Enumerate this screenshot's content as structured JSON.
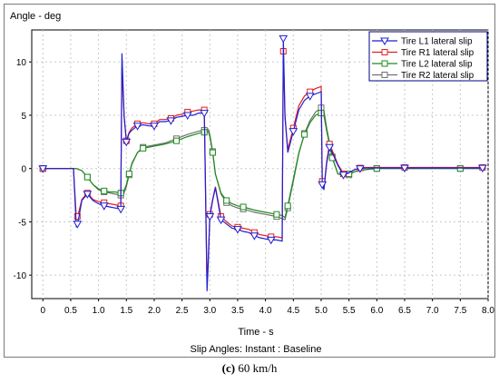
{
  "chart_data": {
    "type": "line",
    "ylabel": "Angle - deg",
    "xlabel": "Time - s",
    "subtitle": "Slip Angles: Instant : Baseline",
    "xlim": [
      -0.2,
      8.0
    ],
    "ylim": [
      -12.2,
      13.0
    ],
    "xticks": [
      0,
      0.5,
      1.0,
      1.5,
      2.0,
      2.5,
      3.0,
      3.5,
      4.0,
      4.5,
      5.0,
      5.5,
      6.0,
      6.5,
      7.0,
      7.5,
      8.0
    ],
    "xtick_labels": [
      "0",
      "0.5",
      "1.0",
      "1.5",
      "2.0",
      "2.5",
      "3.0",
      "3.5",
      "4.0",
      "4.5",
      "5.0",
      "5.5",
      "6.0",
      "6.5",
      "7.0",
      "7.5",
      "8.0"
    ],
    "yticks": [
      -10,
      -5,
      0,
      5,
      10
    ],
    "ytick_labels": [
      "-10",
      "-5",
      "0",
      "5",
      "10"
    ],
    "grid": true,
    "legend_position": "top-right",
    "series": [
      {
        "name": "Tire L1 lateral slip",
        "color": "#1f1fd6",
        "marker": "triangle-down",
        "x": [
          0,
          0.55,
          0.6,
          0.62,
          0.65,
          0.7,
          0.8,
          0.9,
          1.0,
          1.1,
          1.2,
          1.3,
          1.4,
          1.42,
          1.46,
          1.5,
          1.55,
          1.6,
          1.7,
          1.8,
          1.9,
          2.0,
          2.1,
          2.2,
          2.3,
          2.4,
          2.5,
          2.6,
          2.7,
          2.8,
          2.9,
          2.95,
          2.97,
          3.0,
          3.05,
          3.1,
          3.2,
          3.3,
          3.4,
          3.5,
          3.6,
          3.7,
          3.8,
          3.9,
          4.0,
          4.1,
          4.2,
          4.3,
          4.32,
          4.35,
          4.4,
          4.5,
          4.6,
          4.7,
          4.8,
          4.9,
          5.0,
          5.02,
          5.05,
          5.1,
          5.15,
          5.2,
          5.3,
          5.4,
          5.5,
          5.6,
          5.7,
          5.8,
          6.0,
          6.5,
          7.0,
          7.5,
          7.9
        ],
        "y": [
          0,
          0,
          -5.5,
          -5.2,
          -4.5,
          -3.0,
          -2.4,
          -3.0,
          -3.3,
          -3.5,
          -3.6,
          -3.7,
          -3.8,
          10.8,
          5.0,
          2.5,
          3.3,
          3.6,
          4.0,
          4.1,
          4.0,
          4.0,
          4.4,
          4.4,
          4.5,
          4.8,
          4.9,
          5.0,
          5.0,
          5.2,
          5.2,
          -11.5,
          -9.0,
          -4.5,
          -3.0,
          -1.8,
          -4.8,
          -5.2,
          -5.6,
          -5.7,
          -5.9,
          -6.0,
          -6.3,
          -6.5,
          -6.6,
          -6.7,
          -6.7,
          -6.8,
          12.2,
          5.0,
          1.5,
          3.5,
          5.5,
          6.4,
          6.8,
          7.0,
          7.2,
          -1.5,
          -2.0,
          0.5,
          2.0,
          1.5,
          0.3,
          -0.6,
          -0.4,
          -0.1,
          0.0,
          0.05,
          0.05,
          0.05,
          0.05,
          0.05,
          0.05
        ]
      },
      {
        "name": "Tire R1 lateral slip",
        "color": "#e02020",
        "marker": "square",
        "x": [
          0,
          0.55,
          0.6,
          0.62,
          0.65,
          0.7,
          0.8,
          0.9,
          1.0,
          1.1,
          1.2,
          1.3,
          1.4,
          1.42,
          1.46,
          1.5,
          1.55,
          1.6,
          1.7,
          1.8,
          1.9,
          2.0,
          2.1,
          2.2,
          2.3,
          2.4,
          2.5,
          2.6,
          2.7,
          2.8,
          2.9,
          2.95,
          2.97,
          3.0,
          3.05,
          3.1,
          3.2,
          3.3,
          3.4,
          3.5,
          3.6,
          3.7,
          3.8,
          3.9,
          4.0,
          4.1,
          4.2,
          4.3,
          4.32,
          4.35,
          4.4,
          4.5,
          4.6,
          4.7,
          4.8,
          4.9,
          5.0,
          5.02,
          5.05,
          5.1,
          5.15,
          5.2,
          5.3,
          5.4,
          5.5,
          5.6,
          5.7,
          5.8,
          6.0,
          6.5,
          7.0,
          7.5,
          7.9
        ],
        "y": [
          0,
          0,
          -4.6,
          -4.5,
          -4.0,
          -2.9,
          -2.3,
          -2.9,
          -3.1,
          -3.2,
          -3.3,
          -3.4,
          -3.5,
          9.5,
          4.8,
          2.6,
          3.4,
          3.8,
          4.2,
          4.3,
          4.2,
          4.2,
          4.6,
          4.6,
          4.7,
          5.0,
          5.1,
          5.3,
          5.4,
          5.5,
          5.5,
          -10.8,
          -8.5,
          -4.3,
          -2.9,
          -1.7,
          -4.5,
          -5.0,
          -5.4,
          -5.5,
          -5.6,
          -5.7,
          -6.0,
          -6.2,
          -6.3,
          -6.4,
          -6.4,
          -6.5,
          11.0,
          4.8,
          1.8,
          3.8,
          5.9,
          6.8,
          7.2,
          7.5,
          7.7,
          -1.2,
          -1.8,
          0.7,
          2.3,
          1.7,
          0.4,
          -0.5,
          -0.4,
          -0.1,
          0.05,
          0.1,
          0.1,
          0.1,
          0.1,
          0.1,
          0.1
        ]
      },
      {
        "name": "Tire L2 lateral slip",
        "color": "#1e8c1e",
        "marker": "square",
        "x": [
          0,
          0.6,
          0.7,
          0.8,
          0.9,
          1.0,
          1.1,
          1.2,
          1.3,
          1.4,
          1.45,
          1.5,
          1.55,
          1.6,
          1.7,
          1.8,
          2.0,
          2.2,
          2.4,
          2.6,
          2.8,
          2.9,
          2.97,
          3.0,
          3.05,
          3.1,
          3.2,
          3.3,
          3.4,
          3.5,
          3.6,
          3.8,
          4.0,
          4.2,
          4.3,
          4.35,
          4.4,
          4.5,
          4.6,
          4.7,
          4.8,
          4.9,
          5.0,
          5.05,
          5.1,
          5.2,
          5.3,
          5.4,
          5.5,
          5.6,
          5.8,
          6.0,
          6.5,
          7.0,
          7.5,
          7.9
        ],
        "y": [
          0,
          0,
          -0.2,
          -0.8,
          -1.5,
          -1.9,
          -2.1,
          -2.2,
          -2.2,
          -2.3,
          -2.2,
          -1.5,
          -0.5,
          0.5,
          1.5,
          1.9,
          2.1,
          2.3,
          2.6,
          3.0,
          3.3,
          3.4,
          3.5,
          3.0,
          1.5,
          -0.5,
          -2.3,
          -3.0,
          -3.3,
          -3.5,
          -3.6,
          -3.9,
          -4.1,
          -4.3,
          -4.4,
          -4.6,
          -3.5,
          -1.0,
          1.5,
          3.2,
          4.3,
          5.0,
          5.2,
          5.0,
          3.5,
          1.0,
          -0.5,
          -0.6,
          -0.5,
          -0.3,
          -0.1,
          0.0,
          0.0,
          0.0,
          0.0,
          0.0
        ]
      },
      {
        "name": "Tire R2 lateral slip",
        "color": "#707070",
        "marker": "square",
        "x": [
          0,
          0.6,
          0.7,
          0.8,
          0.9,
          1.0,
          1.1,
          1.2,
          1.3,
          1.4,
          1.45,
          1.5,
          1.55,
          1.6,
          1.7,
          1.8,
          2.0,
          2.2,
          2.4,
          2.6,
          2.8,
          2.9,
          2.97,
          3.0,
          3.05,
          3.1,
          3.2,
          3.3,
          3.4,
          3.5,
          3.6,
          3.8,
          4.0,
          4.2,
          4.3,
          4.35,
          4.4,
          4.5,
          4.6,
          4.7,
          4.8,
          4.9,
          5.0,
          5.05,
          5.1,
          5.2,
          5.3,
          5.4,
          5.5,
          5.6,
          5.8,
          6.0,
          6.5,
          7.0,
          7.5,
          7.9
        ],
        "y": [
          0,
          0,
          -0.2,
          -0.8,
          -1.5,
          -2.0,
          -2.2,
          -2.3,
          -2.4,
          -2.5,
          -2.4,
          -1.7,
          -0.6,
          0.4,
          1.5,
          2.0,
          2.2,
          2.4,
          2.8,
          3.2,
          3.5,
          3.6,
          3.7,
          3.2,
          1.6,
          -0.5,
          -2.4,
          -3.2,
          -3.5,
          -3.7,
          -3.8,
          -4.1,
          -4.3,
          -4.5,
          -4.7,
          -4.8,
          -3.7,
          -1.2,
          1.4,
          3.3,
          4.5,
          5.3,
          5.7,
          5.5,
          3.8,
          1.1,
          -0.5,
          -0.7,
          -0.6,
          -0.3,
          -0.1,
          0.0,
          0.0,
          0.0,
          0.0,
          0.0
        ]
      }
    ]
  },
  "caption": {
    "label": "(c)",
    "text": " 60 km/h"
  }
}
